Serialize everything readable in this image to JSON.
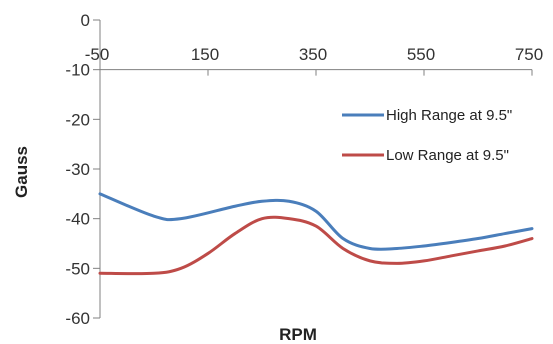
{
  "chart_data": {
    "type": "line",
    "xlabel": "RPM",
    "ylabel": "Gauss",
    "xlim": [
      -50,
      750
    ],
    "ylim": [
      -60,
      0
    ],
    "x_ticks": [
      -50,
      150,
      350,
      550,
      750
    ],
    "y_ticks": [
      0,
      -10,
      -20,
      -30,
      -40,
      -50,
      -60
    ],
    "x_tick_labels": [
      "-50",
      "150",
      "350",
      "550",
      "750"
    ],
    "y_tick_labels": [
      "0",
      "-10",
      "-20",
      "-30",
      "-40",
      "-50",
      "-60"
    ],
    "grid": false,
    "legend_position": "right",
    "series": [
      {
        "name": "High Range at 9.5\"",
        "color": "#4a7ebb",
        "x": [
          -50,
          50,
          100,
          200,
          250,
          300,
          350,
          400,
          450,
          500,
          550,
          600,
          650,
          700,
          750
        ],
        "y": [
          -35,
          -39.5,
          -40,
          -37.5,
          -36.5,
          -36.5,
          -38.5,
          -44,
          -46,
          -46,
          -45.5,
          -44.8,
          -44,
          -43,
          -42
        ]
      },
      {
        "name": "Low Range at 9.5\"",
        "color": "#be4b48",
        "x": [
          -50,
          50,
          100,
          150,
          200,
          250,
          300,
          350,
          400,
          450,
          500,
          550,
          600,
          650,
          700,
          750
        ],
        "y": [
          -51,
          -51,
          -50,
          -47,
          -43,
          -40,
          -40,
          -41.5,
          -46,
          -48.5,
          -49,
          -48.5,
          -47.5,
          -46.5,
          -45.5,
          -44
        ]
      }
    ]
  }
}
